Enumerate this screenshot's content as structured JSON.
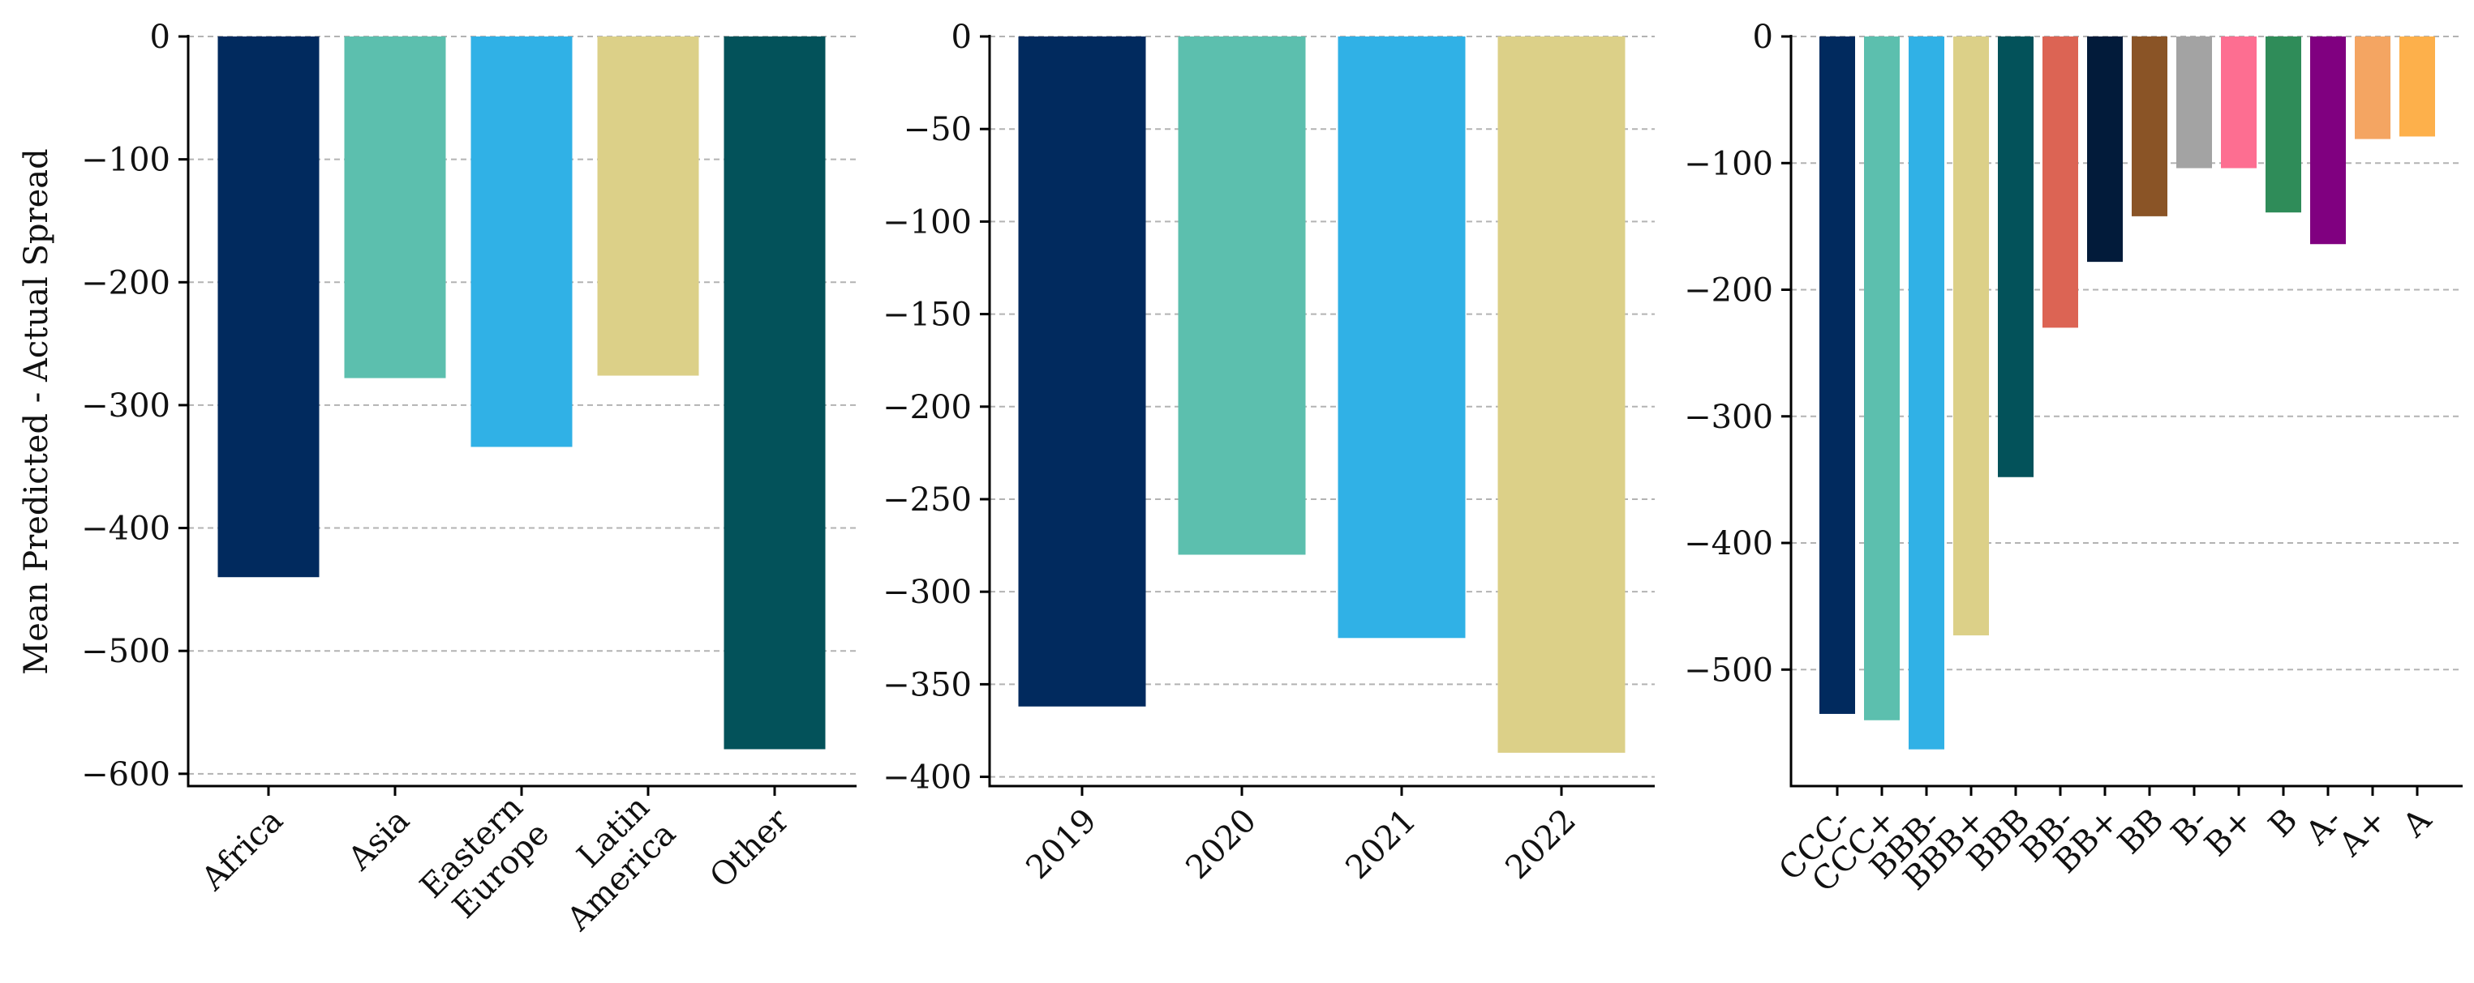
{
  "ylabel": "Mean Predicted - Actual Spread",
  "chart_data": [
    {
      "type": "bar",
      "categories": [
        "Africa",
        "Asia",
        "Eastern\nEurope",
        "Latin\nAmerica",
        "Other"
      ],
      "values": [
        -440,
        -278,
        -334,
        -276,
        -580
      ],
      "colors": [
        "#012a5e",
        "#5cbfae",
        "#30b1e6",
        "#dcd088",
        "#03525a"
      ],
      "ylim": [
        -610,
        0
      ],
      "yticks": [
        0,
        -100,
        -200,
        -300,
        -400,
        -500,
        -600
      ],
      "ytick_labels": [
        "0",
        "−100",
        "−200",
        "−300",
        "−400",
        "−500",
        "−600"
      ],
      "grid": true
    },
    {
      "type": "bar",
      "categories": [
        "2019",
        "2020",
        "2021",
        "2022"
      ],
      "values": [
        -362,
        -280,
        -325,
        -387
      ],
      "colors": [
        "#012a5e",
        "#5cbfae",
        "#30b1e6",
        "#dcd088"
      ],
      "ylim": [
        -405,
        0
      ],
      "yticks": [
        0,
        -50,
        -100,
        -150,
        -200,
        -250,
        -300,
        -350,
        -400
      ],
      "ytick_labels": [
        "0",
        "−50",
        "−100",
        "−150",
        "−200",
        "−250",
        "−300",
        "−350",
        "−400"
      ],
      "grid": true
    },
    {
      "type": "bar",
      "categories": [
        "CCC-",
        "CCC+",
        "BBB-",
        "BBB+",
        "BBB",
        "BB-",
        "BB+",
        "BB",
        "B-",
        "B+",
        "B",
        "A-",
        "A+",
        "A"
      ],
      "values": [
        -535,
        -540,
        -563,
        -473,
        -348,
        -230,
        -178,
        -142,
        -104,
        -104,
        -139,
        -164,
        -81,
        -79
      ],
      "colors": [
        "#012a5e",
        "#5cbfae",
        "#30b1e6",
        "#dcd088",
        "#03525a",
        "#dc6454",
        "#021b3a",
        "#8a5426",
        "#a3a3a3",
        "#fd6e91",
        "#2f8c59",
        "#800080",
        "#f4a562",
        "#fdb04b"
      ],
      "ylim": [
        -592,
        0
      ],
      "yticks": [
        0,
        -100,
        -200,
        -300,
        -400,
        -500
      ],
      "ytick_labels": [
        "0",
        "−100",
        "−200",
        "−300",
        "−400",
        "−500"
      ],
      "grid": true
    }
  ]
}
